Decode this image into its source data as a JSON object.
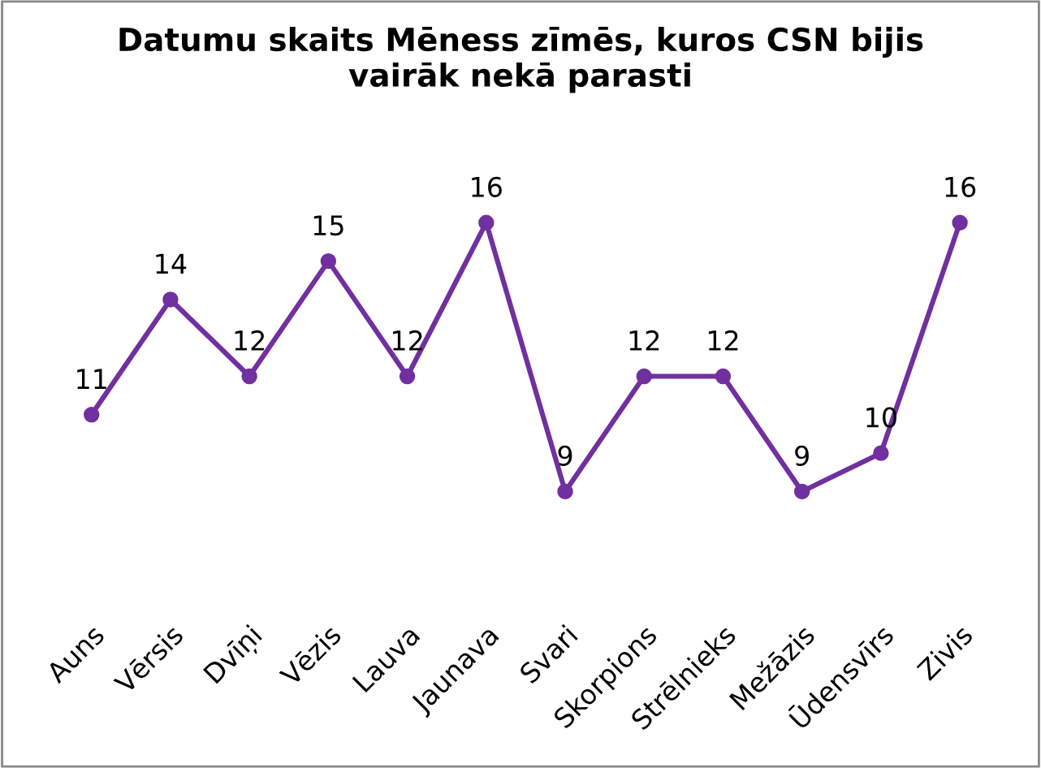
{
  "chart_data": {
    "type": "line",
    "title": "Datumu skaits Mēness zīmēs, kuros CSN bijis\nvairāk nekā parasti",
    "categories": [
      "Auns",
      "Vērsis",
      "Dvīņi",
      "Vēzis",
      "Lauva",
      "Jaunava",
      "Svari",
      "Skorpions",
      "Strēlnieks",
      "Mežāzis",
      "Ūdensvīrs",
      "Zivis"
    ],
    "series": [
      {
        "color": "#7030a0",
        "values": [
          11,
          14,
          12,
          15,
          12,
          16,
          9,
          12,
          12,
          9,
          10,
          16
        ]
      }
    ],
    "data_labels": true,
    "marker": "circle",
    "line_style": "solid",
    "grid": false,
    "legend": false,
    "tick_labels": "x"
  }
}
